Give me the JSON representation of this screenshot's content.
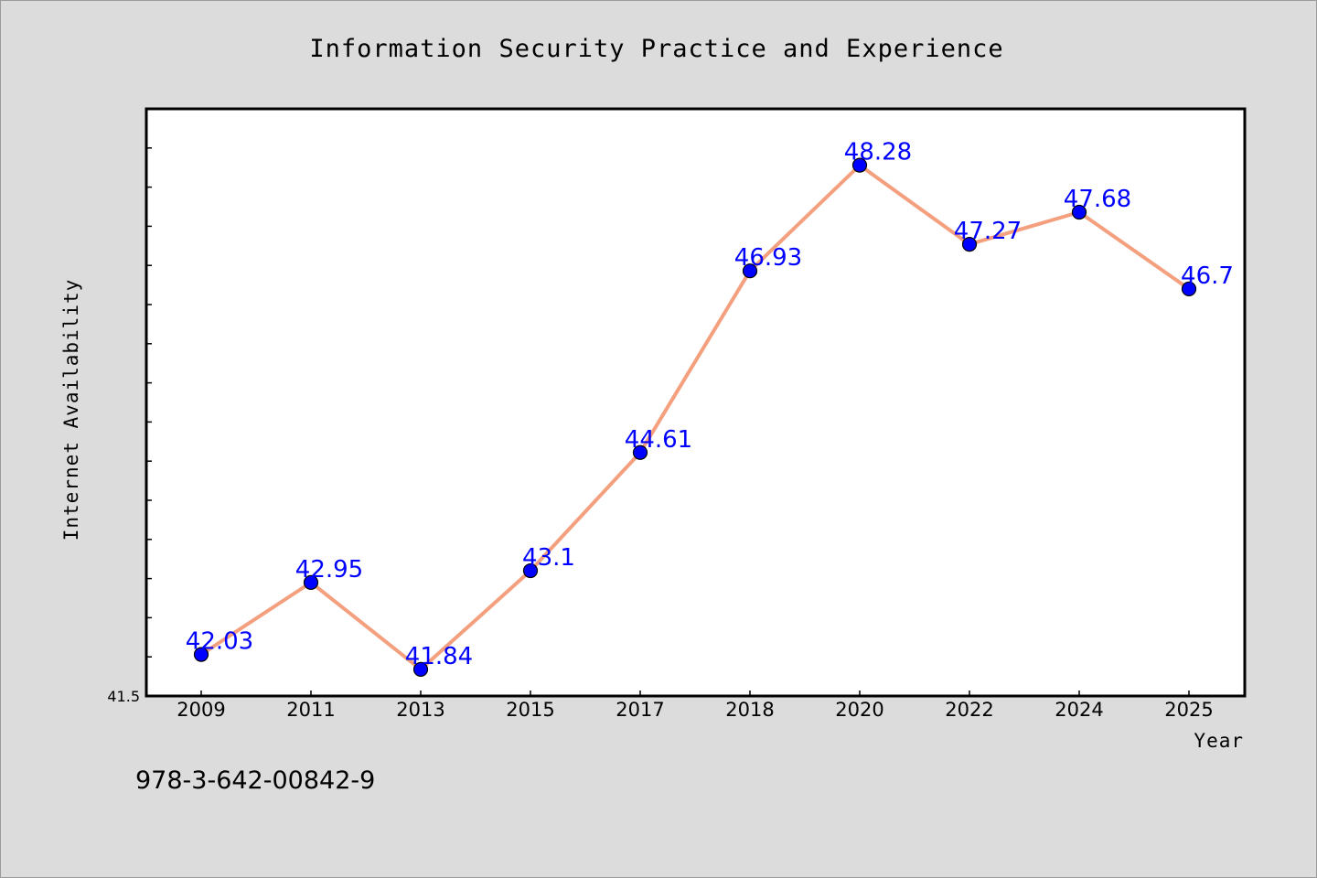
{
  "chart_data": {
    "type": "line",
    "title": "Information Security Practice and Experience",
    "xlabel": "Year",
    "ylabel": "Internet Availability",
    "categories": [
      "2009",
      "2011",
      "2013",
      "2015",
      "2017",
      "2018",
      "2020",
      "2022",
      "2024",
      "2025"
    ],
    "series": [
      {
        "values": [
          42.03,
          42.95,
          41.84,
          43.1,
          44.61,
          46.93,
          48.28,
          47.27,
          47.68,
          46.7
        ],
        "data_labels": [
          "42.03",
          "42.95",
          "41.84",
          "43.1",
          "44.61",
          "46.93",
          "48.28",
          "47.27",
          "47.68",
          "46.7"
        ]
      }
    ],
    "ylim": [
      41.5,
      49.0
    ],
    "yticks_labeled": [
      "41.5"
    ],
    "grid": false,
    "legend": "none",
    "colors": {
      "line": "#f4a07e",
      "marker": "#0000ff",
      "label": "#0000ff",
      "plot_bg": "#ffffff",
      "figure_bg": "#dcdcdc"
    }
  },
  "footnote": "978-3-642-00842-9"
}
